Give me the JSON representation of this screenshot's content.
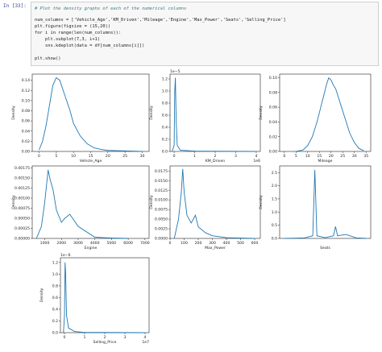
{
  "cell": {
    "prompt": "In [33]:",
    "lines": [
      "# Plot the density graphs of each of the numerical columns",
      "num_columns = ['Vehicle_Age','KM_Driven','Mileage','Engine','Max_Power','Seats','Selling_Price']",
      "plt.figure(figsize = (15,20))",
      "for i in range(len(num_columns)):",
      "    plt.subplot(7,3, i+1)",
      "    sns.kdeplot(data = df[num_columns[i]])",
      "plt.show()"
    ]
  },
  "chart_data": [
    {
      "type": "line",
      "xlabel": "Vehicle_Age",
      "ylabel": "Density",
      "color": "#1f77b4",
      "x": [
        0,
        1,
        2,
        3,
        4,
        5,
        6,
        7,
        8,
        9,
        10,
        12,
        14,
        16,
        18,
        20,
        25,
        30
      ],
      "values": [
        0.003,
        0.02,
        0.05,
        0.09,
        0.13,
        0.145,
        0.14,
        0.12,
        0.1,
        0.08,
        0.055,
        0.03,
        0.015,
        0.007,
        0.004,
        0.002,
        0.001,
        0
      ],
      "xlim": [
        -2,
        32
      ],
      "xticks": [
        0,
        5,
        10,
        15,
        20,
        25,
        30
      ],
      "ylim": [
        0,
        0.152
      ],
      "yticks": [
        {
          "value": 0,
          "label": "0.00"
        },
        0.02,
        0.04,
        0.06,
        0.08,
        {
          "value": 0.1,
          "label": "0.10"
        },
        0.12,
        0.14
      ]
    },
    {
      "type": "line",
      "xlabel": "KM_Driven",
      "ylabel": "Density",
      "color": "#1f77b4",
      "x_offset": "1e6",
      "y_offset": "1e−5",
      "x": [
        -0.1,
        0,
        0.03,
        0.06,
        0.1,
        0.15,
        0.3,
        1,
        4
      ],
      "values": [
        0,
        0.1,
        1.0,
        1.22,
        0.5,
        0.1,
        0.02,
        0.005,
        0
      ],
      "xlim": [
        -0.2,
        4.2
      ],
      "xticks": [
        0,
        1,
        2,
        3,
        4
      ],
      "ylim": [
        0,
        1.28
      ],
      "yticks": [
        {
          "value": 0,
          "label": "0.0"
        },
        0.2,
        0.4,
        0.6,
        0.8,
        {
          "value": 1,
          "label": "1.0"
        },
        1.2
      ]
    },
    {
      "type": "line",
      "xlabel": "Mileage",
      "ylabel": "Density",
      "color": "#1f77b4",
      "x": [
        5,
        8,
        10,
        12,
        14,
        16,
        18,
        19,
        20,
        21,
        22,
        24,
        26,
        28,
        30,
        32,
        34
      ],
      "values": [
        0,
        0.002,
        0.008,
        0.02,
        0.04,
        0.065,
        0.09,
        0.1,
        0.097,
        0.09,
        0.085,
        0.065,
        0.045,
        0.025,
        0.012,
        0.004,
        0.001
      ],
      "xlim": [
        -2,
        37
      ],
      "xticks": [
        0,
        5,
        10,
        15,
        20,
        25,
        30,
        35
      ],
      "ylim": [
        0,
        0.105
      ],
      "yticks": [
        {
          "value": 0,
          "label": "0.00"
        },
        0.02,
        0.04,
        0.06,
        0.08,
        {
          "value": 0.1,
          "label": "0.10"
        }
      ]
    },
    {
      "type": "line",
      "xlabel": "Engine",
      "ylabel": "Density",
      "color": "#1f77b4",
      "x": [
        500,
        800,
        1000,
        1200,
        1300,
        1500,
        1700,
        2000,
        2200,
        2500,
        3000,
        4000,
        5000,
        6000
      ],
      "values": [
        0,
        0.0003,
        0.0009,
        0.0017,
        0.0015,
        0.0012,
        0.0007,
        0.0004,
        0.0005,
        0.0006,
        0.0003,
        3e-05,
        1e-05,
        0
      ],
      "xlim": [
        250,
        7250
      ],
      "xticks": [
        1000,
        2000,
        3000,
        4000,
        5000,
        6000,
        7000
      ],
      "ylim": [
        0,
        0.0018
      ],
      "yticks": [
        {
          "value": 0,
          "label": "0.00000"
        },
        0.00025,
        {
          "value": 0.0005,
          "label": "0.00050"
        },
        0.00075,
        {
          "value": 0.001,
          "label": "0.00100"
        },
        0.00125,
        {
          "value": 0.0015,
          "label": "0.00150"
        },
        0.00175
      ]
    },
    {
      "type": "line",
      "xlabel": "Max_Power",
      "ylabel": "Density",
      "color": "#1f77b4",
      "x": [
        30,
        60,
        80,
        90,
        100,
        120,
        150,
        180,
        200,
        250,
        300,
        400,
        600
      ],
      "values": [
        0,
        0.005,
        0.012,
        0.018,
        0.012,
        0.006,
        0.004,
        0.006,
        0.003,
        0.0015,
        0.0007,
        0.0002,
        0
      ],
      "xlim": [
        0,
        640
      ],
      "xticks": [
        0,
        100,
        200,
        300,
        400,
        500,
        600
      ],
      "ylim": [
        0,
        0.0188
      ],
      "yticks": [
        {
          "value": 0,
          "label": "0.0000"
        },
        0.0025,
        {
          "value": 0.005,
          "label": "0.0050"
        },
        0.0075,
        {
          "value": 0.01,
          "label": "0.0100"
        },
        0.0125,
        {
          "value": 0.015,
          "label": "0.0150"
        },
        0.0175
      ]
    },
    {
      "type": "line",
      "xlabel": "Seats",
      "ylabel": "Density",
      "color": "#1f77b4",
      "x": [
        2,
        3,
        4,
        4.8,
        5,
        5.2,
        6,
        6.8,
        7,
        7.2,
        8,
        9,
        10
      ],
      "values": [
        0,
        0.01,
        0.02,
        0.1,
        2.6,
        0.1,
        0.03,
        0.1,
        0.45,
        0.1,
        0.15,
        0.02,
        0
      ],
      "xlim": [
        1.6,
        10.4
      ],
      "xticks": [],
      "ylim": [
        0,
        2.75
      ],
      "yticks": [
        {
          "value": 0,
          "label": "0.0"
        },
        0.5,
        {
          "value": 1,
          "label": "1.0"
        },
        1.5,
        {
          "value": 2,
          "label": "2.0"
        },
        2.5
      ]
    },
    {
      "type": "line",
      "xlabel": "Selling_Price",
      "ylabel": "Density",
      "color": "#1f77b4",
      "x_offset": "1e7",
      "y_offset": "1e−6",
      "x": [
        -0.05,
        0,
        0.03,
        0.06,
        0.1,
        0.2,
        0.5,
        1,
        4
      ],
      "values": [
        0,
        0.3,
        1.2,
        1.0,
        0.3,
        0.08,
        0.02,
        0.005,
        0
      ],
      "xlim": [
        -0.2,
        4.2
      ],
      "xticks": [
        0,
        1,
        2,
        3,
        4
      ],
      "ylim": [
        0,
        1.28
      ],
      "yticks": [
        {
          "value": 0,
          "label": "0.0"
        },
        0.2,
        0.4,
        0.6,
        0.8,
        {
          "value": 1,
          "label": "1.0"
        },
        1.2
      ]
    }
  ]
}
